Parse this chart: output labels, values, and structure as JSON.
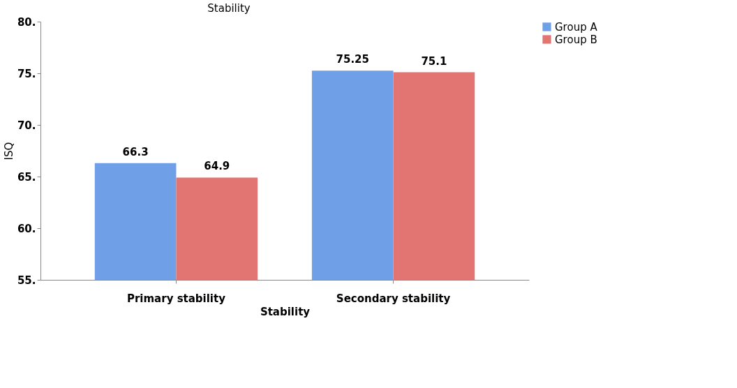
{
  "chart_data": {
    "type": "bar",
    "title": "Stability",
    "xlabel": "Stability",
    "ylabel": "ISQ",
    "categories": [
      "Primary stability",
      "Secondary stability"
    ],
    "series": [
      {
        "name": "Group A",
        "color": "#6f9fe6",
        "values": [
          66.3,
          75.25
        ]
      },
      {
        "name": "Group B",
        "color": "#e27572",
        "values": [
          64.9,
          75.1
        ]
      }
    ],
    "ylim": [
      55,
      80
    ],
    "yticks": [
      {
        "value": 55,
        "label": "55."
      },
      {
        "value": 60,
        "label": "60."
      },
      {
        "value": 65,
        "label": "65."
      },
      {
        "value": 70,
        "label": "70."
      },
      {
        "value": 75,
        "label": "75."
      },
      {
        "value": 80,
        "label": "80."
      }
    ],
    "data_labels": true,
    "grid": false,
    "legend": "right"
  }
}
